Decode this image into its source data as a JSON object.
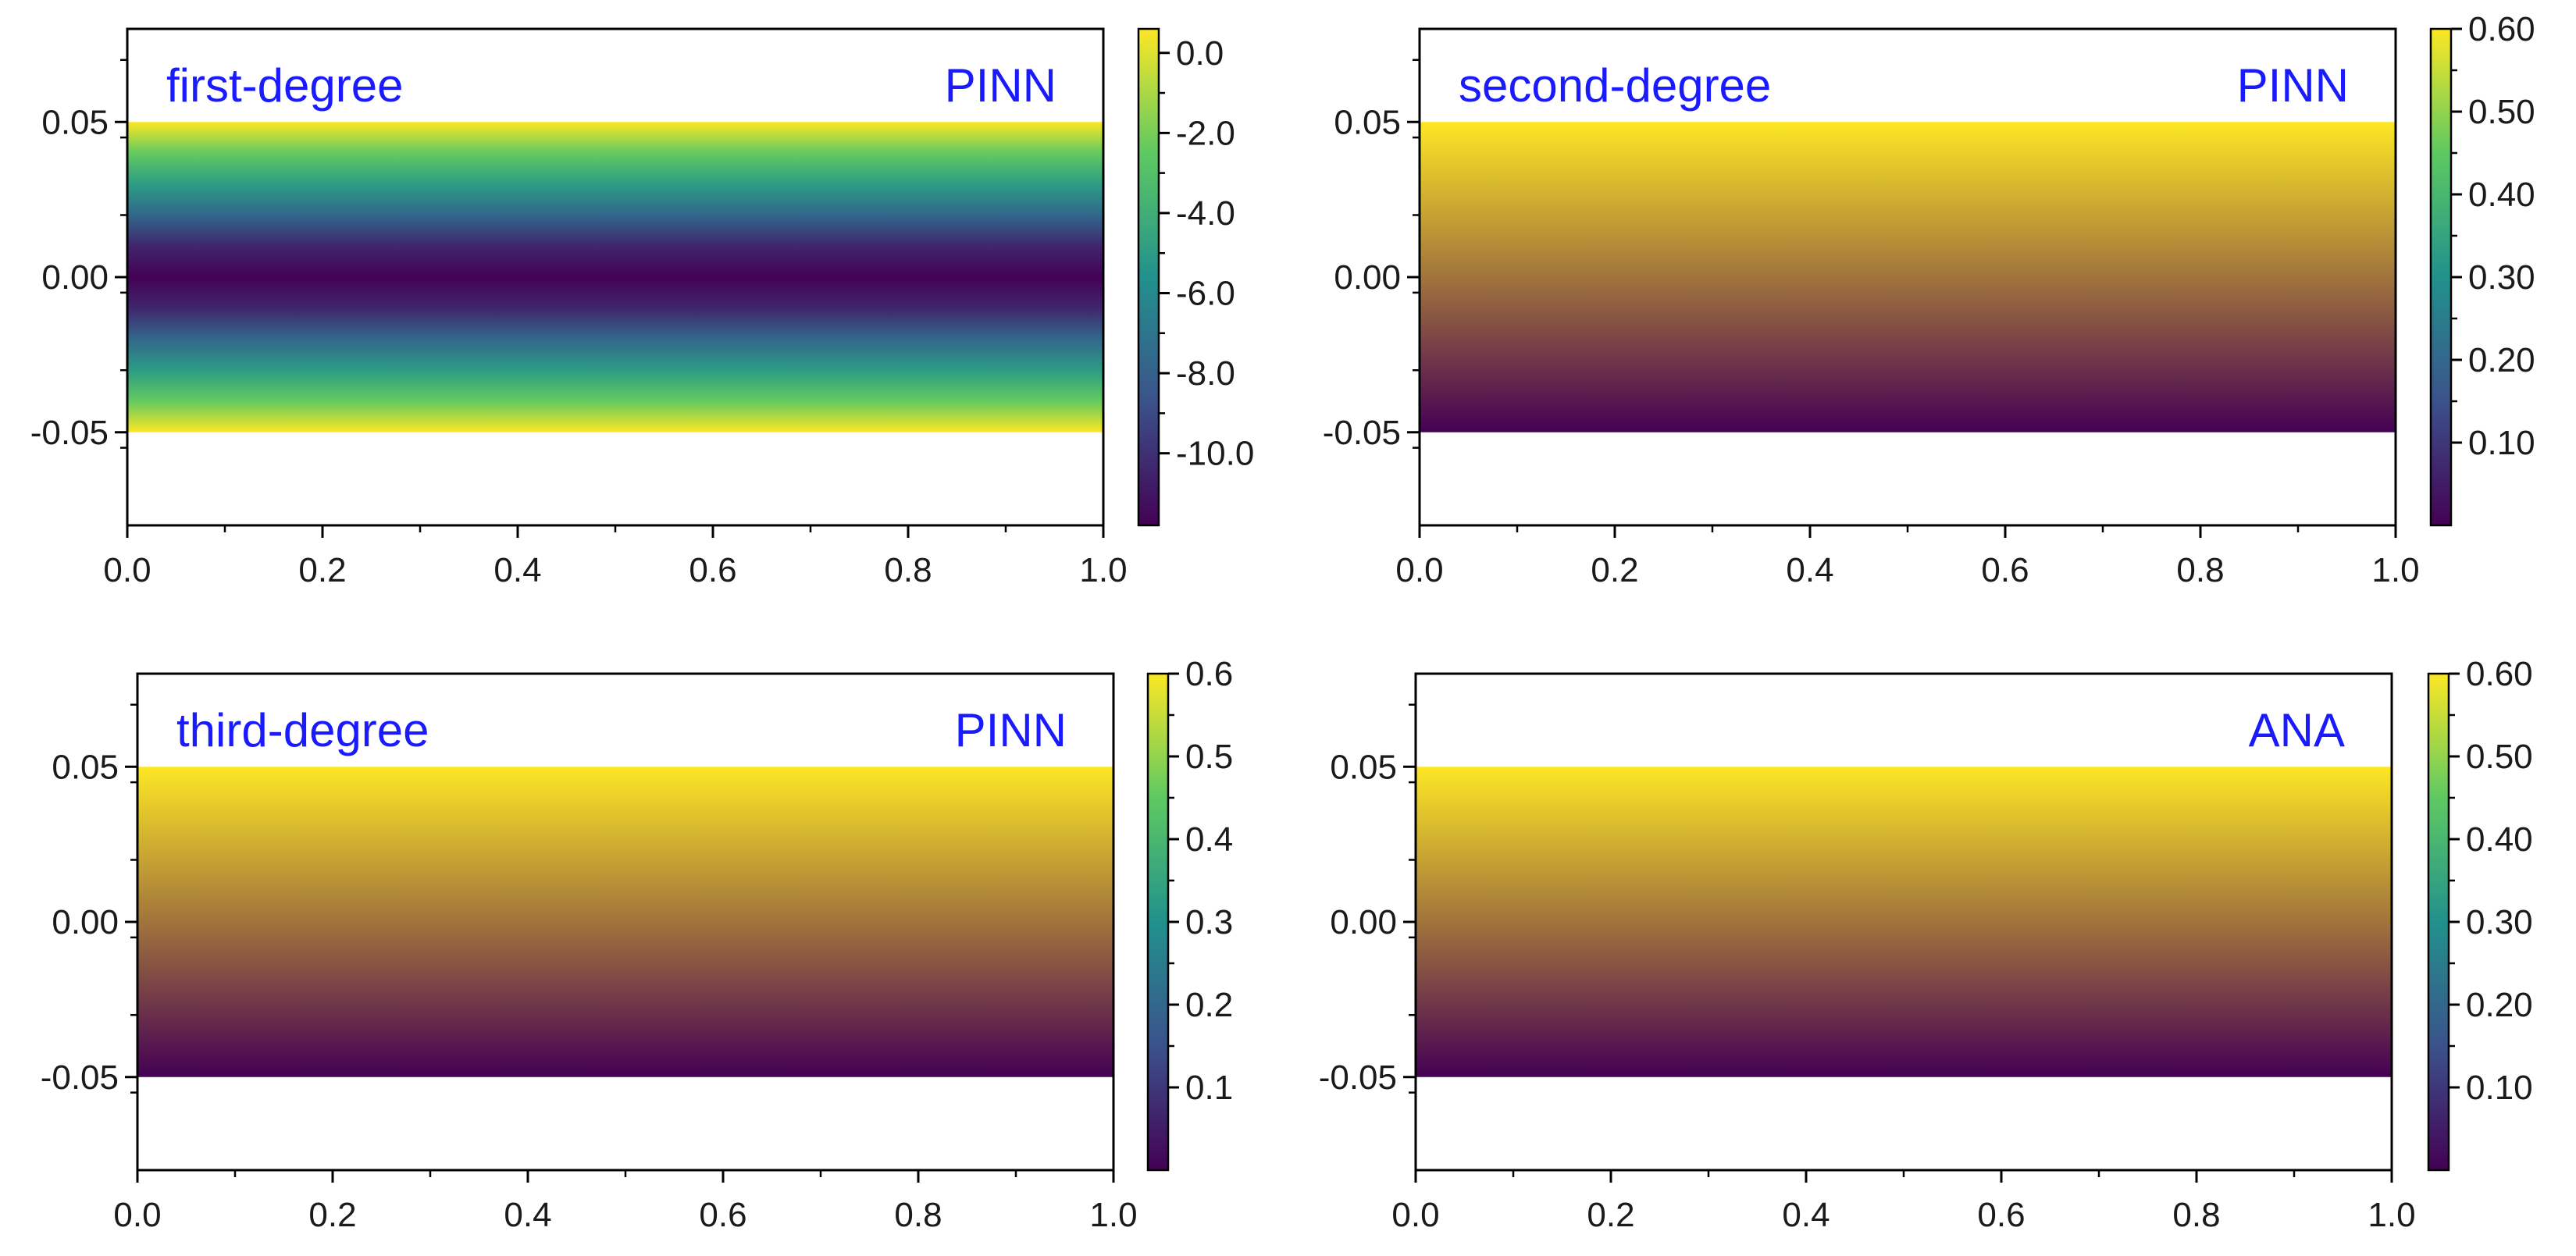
{
  "chart_data": [
    {
      "type": "heatmap",
      "title": "",
      "xlabel": "",
      "ylabel": "",
      "annotations": [
        "first-degree",
        "PINN"
      ],
      "xlim": [
        0.0,
        1.0
      ],
      "ylim": [
        -0.08,
        0.08
      ],
      "data_ylim": [
        -0.05,
        0.05
      ],
      "x_ticks": [
        "0.0",
        "0.2",
        "0.4",
        "0.6",
        "0.8",
        "1.0"
      ],
      "x_tick_values": [
        0.0,
        0.2,
        0.4,
        0.6,
        0.8,
        1.0
      ],
      "y_ticks": [
        "0.05",
        "0.00",
        "-0.05"
      ],
      "y_tick_values": [
        0.05,
        0.0,
        -0.05
      ],
      "colorbar": {
        "min": -11.8,
        "max": 0.6,
        "ticks": [
          "0.0",
          "-2.0",
          "-4.0",
          "-6.0",
          "-8.0",
          "-10.0"
        ],
        "tick_values": [
          0.0,
          -2.0,
          -4.0,
          -6.0,
          -8.0,
          -10.0
        ]
      },
      "profile": {
        "y": [
          -0.05,
          -0.04,
          -0.03,
          -0.02,
          -0.01,
          0.0,
          0.01,
          0.02,
          0.03,
          0.04,
          0.05
        ],
        "value": [
          0.6,
          -2.4,
          -5.0,
          -7.6,
          -10.4,
          -11.8,
          -10.4,
          -7.6,
          -5.0,
          -2.4,
          0.6
        ]
      }
    },
    {
      "type": "heatmap",
      "title": "",
      "xlabel": "",
      "ylabel": "",
      "annotations": [
        "second-degree",
        "PINN"
      ],
      "xlim": [
        0.0,
        1.0
      ],
      "ylim": [
        -0.08,
        0.08
      ],
      "data_ylim": [
        -0.05,
        0.05
      ],
      "x_ticks": [
        "0.0",
        "0.2",
        "0.4",
        "0.6",
        "0.8",
        "1.0"
      ],
      "x_tick_values": [
        0.0,
        0.2,
        0.4,
        0.6,
        0.8,
        1.0
      ],
      "y_ticks": [
        "0.05",
        "0.00",
        "-0.05"
      ],
      "y_tick_values": [
        0.05,
        0.0,
        -0.05
      ],
      "colorbar": {
        "min": 0.0,
        "max": 0.6,
        "ticks": [
          "0.60",
          "0.50",
          "0.40",
          "0.30",
          "0.20",
          "0.10"
        ],
        "tick_values": [
          0.6,
          0.5,
          0.4,
          0.3,
          0.2,
          0.1
        ]
      },
      "profile": {
        "y": [
          -0.05,
          0.05
        ],
        "value": [
          0.0,
          0.6
        ]
      }
    },
    {
      "type": "heatmap",
      "title": "",
      "xlabel": "",
      "ylabel": "",
      "annotations": [
        "third-degree",
        "PINN"
      ],
      "xlim": [
        0.0,
        1.0
      ],
      "ylim": [
        -0.08,
        0.08
      ],
      "data_ylim": [
        -0.05,
        0.05
      ],
      "x_ticks": [
        "0.0",
        "0.2",
        "0.4",
        "0.6",
        "0.8",
        "1.0"
      ],
      "x_tick_values": [
        0.0,
        0.2,
        0.4,
        0.6,
        0.8,
        1.0
      ],
      "y_ticks": [
        "0.05",
        "0.00",
        "-0.05"
      ],
      "y_tick_values": [
        0.05,
        0.0,
        -0.05
      ],
      "colorbar": {
        "min": 0.0,
        "max": 0.6,
        "ticks": [
          "0.6",
          "0.5",
          "0.4",
          "0.3",
          "0.2",
          "0.1"
        ],
        "tick_values": [
          0.6,
          0.5,
          0.4,
          0.3,
          0.2,
          0.1
        ]
      },
      "profile": {
        "y": [
          -0.05,
          0.05
        ],
        "value": [
          0.0,
          0.6
        ]
      }
    },
    {
      "type": "heatmap",
      "title": "",
      "xlabel": "",
      "ylabel": "",
      "annotations": [
        "",
        "ANA"
      ],
      "xlim": [
        0.0,
        1.0
      ],
      "ylim": [
        -0.08,
        0.08
      ],
      "data_ylim": [
        -0.05,
        0.05
      ],
      "x_ticks": [
        "0.0",
        "0.2",
        "0.4",
        "0.6",
        "0.8",
        "1.0"
      ],
      "x_tick_values": [
        0.0,
        0.2,
        0.4,
        0.6,
        0.8,
        1.0
      ],
      "y_ticks": [
        "0.05",
        "0.00",
        "-0.05"
      ],
      "y_tick_values": [
        0.05,
        0.0,
        -0.05
      ],
      "colorbar": {
        "min": 0.0,
        "max": 0.6,
        "ticks": [
          "0.60",
          "0.50",
          "0.40",
          "0.30",
          "0.20",
          "0.10"
        ],
        "tick_values": [
          0.6,
          0.5,
          0.4,
          0.3,
          0.2,
          0.1
        ]
      },
      "profile": {
        "y": [
          -0.05,
          0.05
        ],
        "value": [
          0.0,
          0.6
        ]
      }
    }
  ],
  "colormap": [
    "#440154",
    "#3b528b",
    "#21918c",
    "#5ec962",
    "#fde725"
  ],
  "colors": {
    "label": "#1a1aff",
    "axis": "#000000",
    "text": "#1a1a1a"
  }
}
